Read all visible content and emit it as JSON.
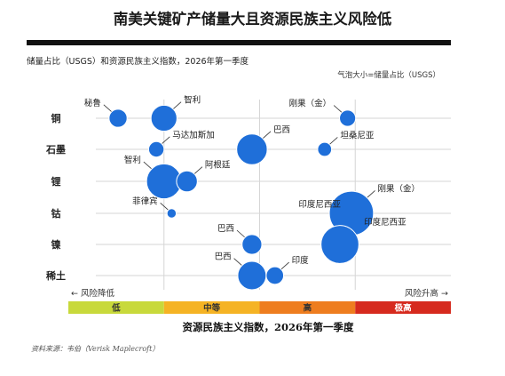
{
  "header": {
    "title": "南美关键矿产储量大且资源民族主义风险低"
  },
  "subtitle": "储量占比（USGS）和资源民族主义指数，2026年第一季度",
  "size_note": "气泡大小=储量占比（USGS）",
  "risk_low_label": "← 风险降低",
  "risk_high_label": "风险升高 →",
  "source": "资料来源：韦伯（Verisk Maplecroft）",
  "colors": {
    "bubble": "#1f6fd9",
    "bubble_stroke": "#ffffff",
    "grid": "#d6d6d6",
    "seg_low": "#c8d93b",
    "seg_medium": "#f5b324",
    "seg_high": "#ee7d1f",
    "seg_extreme": "#d62a1e"
  },
  "chart_data": {
    "type": "scatter",
    "title": "南美关键矿产储量大且资源民族主义风险低",
    "xlabel": "资源民族主义指数，2026年第一季度",
    "ylabel": "",
    "xlim": [
      0,
      10
    ],
    "x_scale_note": "risk index; higher = higher risk",
    "categories": [
      "铜",
      "石墨",
      "锂",
      "钴",
      "镍",
      "稀土"
    ],
    "risk_segments": [
      {
        "label": "低",
        "from": 0,
        "to": 2.5
      },
      {
        "label": "中等",
        "from": 2.5,
        "to": 5
      },
      {
        "label": "高",
        "from": 5,
        "to": 7.5
      },
      {
        "label": "极高",
        "from": 7.5,
        "to": 10
      }
    ],
    "points": [
      {
        "mineral": "铜",
        "country": "秘鲁",
        "x": 1.3,
        "size": 1.5,
        "label_side": "left"
      },
      {
        "mineral": "铜",
        "country": "智利",
        "x": 2.5,
        "size": 3.1,
        "label_side": "right"
      },
      {
        "mineral": "铜",
        "country": "刚果（金）",
        "x": 7.3,
        "size": 1.2,
        "label_side": "left"
      },
      {
        "mineral": "石墨",
        "country": "马达加斯加",
        "x": 2.3,
        "size": 1.1,
        "label_side": "right"
      },
      {
        "mineral": "石墨",
        "country": "巴西",
        "x": 4.8,
        "size": 4.3,
        "label_side": "right"
      },
      {
        "mineral": "石墨",
        "country": "坦桑尼亚",
        "x": 6.7,
        "size": 0.9,
        "label_side": "right"
      },
      {
        "mineral": "锂",
        "country": "智利",
        "x": 2.5,
        "size": 5.6,
        "label_side": "left"
      },
      {
        "mineral": "锂",
        "country": "阿根廷",
        "x": 3.1,
        "size": 2.0,
        "label_side": "right"
      },
      {
        "mineral": "钴",
        "country": "刚果（金）",
        "x": 7.4,
        "size": 9.0,
        "label_side": "right"
      },
      {
        "mineral": "钴",
        "country": "印度尼西亚",
        "x": 7.4,
        "size": 0.0,
        "label_side": "left"
      },
      {
        "mineral": "钴",
        "country": "菲律宾",
        "x": 2.7,
        "size": 0.4,
        "label_side": "left"
      },
      {
        "mineral": "镍",
        "country": "巴西",
        "x": 4.8,
        "size": 1.8,
        "label_side": "left"
      },
      {
        "mineral": "镍",
        "country": "印度尼西亚",
        "x": 7.1,
        "size": 6.6,
        "label_side": "right"
      },
      {
        "mineral": "稀土",
        "country": "巴西",
        "x": 4.8,
        "size": 3.7,
        "label_side": "left"
      },
      {
        "mineral": "稀土",
        "country": "印度",
        "x": 5.4,
        "size": 1.4,
        "label_side": "right"
      }
    ]
  }
}
